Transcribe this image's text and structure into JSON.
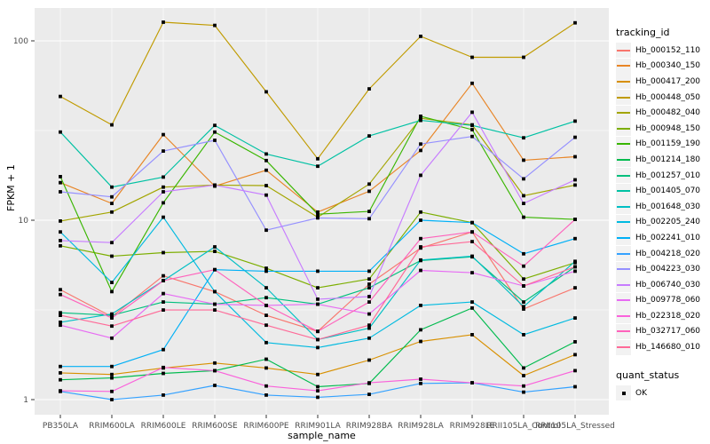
{
  "chart_data": {
    "type": "line",
    "title": "",
    "xlabel": "sample_name",
    "ylabel": "FPKM + 1",
    "y_scale": "log10",
    "y_ticks": [
      1,
      10,
      100
    ],
    "y_tick_labels": [
      "1",
      "10",
      "100"
    ],
    "y_minor_ticks": [
      3.162,
      31.62
    ],
    "ylim": [
      0.85,
      155
    ],
    "grid": true,
    "legend_position": "right",
    "legend": {
      "series_title": "tracking_id",
      "status_title": "quant_status",
      "status_items": [
        {
          "label": "OK",
          "marker": "black-square"
        }
      ]
    },
    "marker": {
      "shape": "square",
      "color": "#000000",
      "size": 3.8
    },
    "categories": [
      "PB350LA",
      "RRIM600LA",
      "RRIM600LE",
      "RRIM600SE",
      "RRIM600PE",
      "RRIM901LA",
      "RRIM928BA",
      "RRIM928LA",
      "RRIM928LE",
      "RRII105LA_Control",
      "RRII105LA_Stressed"
    ],
    "series": [
      {
        "name": "Hb_000152_110",
        "color": "#F8766D",
        "values": [
          4.1,
          2.9,
          4.9,
          4.0,
          2.95,
          2.4,
          4.4,
          7.0,
          8.6,
          3.2,
          4.2
        ]
      },
      {
        "name": "Hb_000340_150",
        "color": "#E88526",
        "values": [
          16.2,
          12.4,
          30,
          15.5,
          19,
          11.1,
          14.5,
          24.5,
          58,
          21.6,
          22.6
        ]
      },
      {
        "name": "Hb_000417_200",
        "color": "#D89000",
        "values": [
          1.41,
          1.38,
          1.5,
          1.6,
          1.5,
          1.38,
          1.66,
          2.11,
          2.3,
          1.36,
          1.78
        ]
      },
      {
        "name": "Hb_000448_050",
        "color": "#C09B00",
        "values": [
          49,
          34,
          127,
          122,
          52,
          22,
          54,
          106,
          81,
          81,
          126
        ]
      },
      {
        "name": "Hb_000482_040",
        "color": "#A3A500",
        "values": [
          9.9,
          11.1,
          15.3,
          15.7,
          15.6,
          10.4,
          15.9,
          37,
          34,
          13.7,
          15.7
        ]
      },
      {
        "name": "Hb_000948_150",
        "color": "#7CAE00",
        "values": [
          7.2,
          6.3,
          6.6,
          6.7,
          5.4,
          4.2,
          4.7,
          11.1,
          9.7,
          4.7,
          5.8
        ]
      },
      {
        "name": "Hb_001159_190",
        "color": "#39B600",
        "values": [
          17.5,
          4.0,
          12.5,
          31,
          21.5,
          10.8,
          11.2,
          38,
          32,
          10.4,
          10.1
        ]
      },
      {
        "name": "Hb_001214_180",
        "color": "#00BB4E",
        "values": [
          1.29,
          1.32,
          1.4,
          1.45,
          1.68,
          1.18,
          1.23,
          2.45,
          3.24,
          1.5,
          2.1
        ]
      },
      {
        "name": "Hb_001257_010",
        "color": "#00BF7D",
        "values": [
          3.05,
          2.95,
          3.5,
          3.4,
          3.7,
          3.4,
          4.2,
          5.96,
          6.25,
          3.5,
          5.5
        ]
      },
      {
        "name": "Hb_001405_070",
        "color": "#00C1A3",
        "values": [
          31,
          15.3,
          17.4,
          33.8,
          23.4,
          20,
          29.5,
          36,
          33.8,
          28.8,
          35.7
        ]
      },
      {
        "name": "Hb_001648_030",
        "color": "#00BFC4",
        "values": [
          2.7,
          3.0,
          4.6,
          7.1,
          4.2,
          2.16,
          2.5,
          6.0,
          6.3,
          3.3,
          5.9
        ]
      },
      {
        "name": "Hb_002205_240",
        "color": "#00BAE0",
        "values": [
          8.6,
          4.5,
          10.4,
          4.0,
          2.08,
          1.95,
          2.2,
          3.35,
          3.5,
          2.3,
          2.85
        ]
      },
      {
        "name": "Hb_002241_010",
        "color": "#00B0F6",
        "values": [
          1.53,
          1.53,
          1.9,
          5.3,
          5.2,
          5.2,
          5.2,
          10.0,
          9.7,
          6.5,
          7.9
        ]
      },
      {
        "name": "Hb_004218_020",
        "color": "#35A2FF",
        "values": [
          1.11,
          1.0,
          1.06,
          1.2,
          1.06,
          1.03,
          1.07,
          1.23,
          1.24,
          1.1,
          1.18
        ]
      },
      {
        "name": "Hb_004223_030",
        "color": "#9590FF",
        "values": [
          14.4,
          13.5,
          24.3,
          27.9,
          8.8,
          10.3,
          10.2,
          26.6,
          29.3,
          17,
          29
        ]
      },
      {
        "name": "Hb_006740_030",
        "color": "#C77CFF",
        "values": [
          7.7,
          7.5,
          14.4,
          15.7,
          13.8,
          3.63,
          3.75,
          17.8,
          40,
          12.4,
          16.8
        ]
      },
      {
        "name": "Hb_009778_060",
        "color": "#E76BF3",
        "values": [
          2.6,
          2.2,
          3.9,
          3.4,
          3.35,
          3.4,
          3.0,
          5.25,
          5.1,
          4.3,
          5.2
        ]
      },
      {
        "name": "Hb_022318_020",
        "color": "#FA62DB",
        "values": [
          1.12,
          1.11,
          1.51,
          1.45,
          1.19,
          1.12,
          1.24,
          1.3,
          1.24,
          1.19,
          1.45
        ]
      },
      {
        "name": "Hb_032717_060",
        "color": "#FF62BC",
        "values": [
          3.85,
          2.85,
          4.6,
          5.3,
          3.35,
          2.4,
          3.5,
          7.9,
          8.6,
          5.55,
          10.1
        ]
      },
      {
        "name": "Hb_146680_010",
        "color": "#FF6A98",
        "values": [
          2.95,
          2.57,
          3.16,
          3.16,
          2.6,
          2.16,
          2.6,
          7.1,
          7.6,
          4.3,
          5.5
        ]
      }
    ]
  },
  "colors": {
    "panel_background": "#EBEBEB",
    "gridline": "#FFFFFF",
    "tick_mark": "#333333",
    "tick_text": "#4D4D4D",
    "axis_title_text": "#000000",
    "legend_key_background": "#F2F2F2",
    "page_background": "#FFFFFF"
  }
}
